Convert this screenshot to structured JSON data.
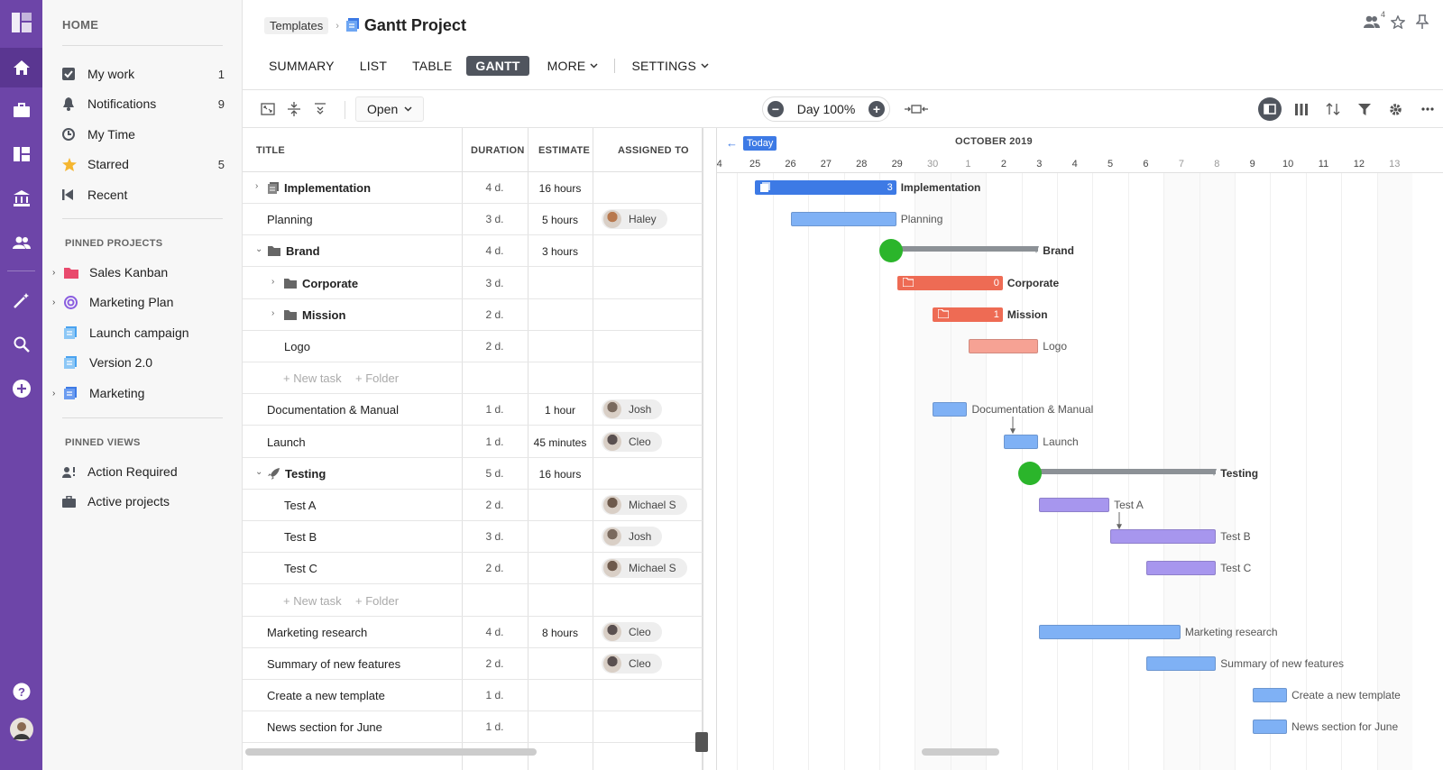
{
  "sidebar": {
    "home": "HOME",
    "items": [
      {
        "label": "My work",
        "count": "1"
      },
      {
        "label": "Notifications",
        "count": "9"
      },
      {
        "label": "My Time",
        "count": ""
      },
      {
        "label": "Starred",
        "count": "5"
      },
      {
        "label": "Recent",
        "count": ""
      }
    ],
    "pinned_projects_title": "PINNED PROJECTS",
    "pinned_projects": [
      "Sales Kanban",
      "Marketing Plan",
      "Launch campaign",
      "Version 2.0",
      "Marketing"
    ],
    "pinned_views_title": "PINNED VIEWS",
    "pinned_views": [
      "Action Required",
      "Active projects"
    ]
  },
  "header": {
    "breadcrumb": "Templates",
    "title": "Gantt Project",
    "tabs": [
      "SUMMARY",
      "LIST",
      "TABLE",
      "GANTT",
      "MORE",
      "SETTINGS"
    ],
    "team_count": "4"
  },
  "toolbar": {
    "open_label": "Open",
    "zoom_label": "Day 100%"
  },
  "columns": {
    "title": "TITLE",
    "duration": "DURATION",
    "estimate": "ESTIMATE",
    "assigned": "ASSIGNED TO"
  },
  "rows": [
    {
      "title": "Implementation",
      "duration": "4 d.",
      "estimate": "16 hours",
      "assignee": ""
    },
    {
      "title": "Planning",
      "duration": "3 d.",
      "estimate": "5 hours",
      "assignee": "Haley"
    },
    {
      "title": "Brand",
      "duration": "4 d.",
      "estimate": "3 hours",
      "assignee": ""
    },
    {
      "title": "Corporate",
      "duration": "3 d.",
      "estimate": "",
      "assignee": ""
    },
    {
      "title": "Mission",
      "duration": "2 d.",
      "estimate": "",
      "assignee": ""
    },
    {
      "title": "Logo",
      "duration": "2 d.",
      "estimate": "",
      "assignee": ""
    },
    {
      "new_task": "+ New task",
      "new_folder": "+ Folder"
    },
    {
      "title": "Documentation & Manual",
      "duration": "1 d.",
      "estimate": "1 hour",
      "assignee": "Josh"
    },
    {
      "title": "Launch",
      "duration": "1 d.",
      "estimate": "45 minutes",
      "assignee": "Cleo"
    },
    {
      "title": "Testing",
      "duration": "5 d.",
      "estimate": "16 hours",
      "assignee": ""
    },
    {
      "title": "Test A",
      "duration": "2 d.",
      "estimate": "",
      "assignee": "Michael S"
    },
    {
      "title": "Test B",
      "duration": "3 d.",
      "estimate": "",
      "assignee": "Josh"
    },
    {
      "title": "Test C",
      "duration": "2 d.",
      "estimate": "",
      "assignee": "Michael S"
    },
    {
      "new_task": "+ New task",
      "new_folder": "+ Folder"
    },
    {
      "title": "Marketing research",
      "duration": "4 d.",
      "estimate": "8 hours",
      "assignee": "Cleo"
    },
    {
      "title": "Summary of new features",
      "duration": "2 d.",
      "estimate": "",
      "assignee": "Cleo"
    },
    {
      "title": "Create a new template",
      "duration": "1 d.",
      "estimate": "",
      "assignee": ""
    },
    {
      "title": "News section for June",
      "duration": "1 d.",
      "estimate": "",
      "assignee": ""
    }
  ],
  "gantt": {
    "today_label": "Today",
    "month": "OCTOBER 2019",
    "days": [
      "4",
      "25",
      "26",
      "27",
      "28",
      "29",
      "30",
      "1",
      "2",
      "3",
      "4",
      "5",
      "6",
      "7",
      "8",
      "9",
      "10",
      "11",
      "12",
      "13"
    ],
    "bars": {
      "implementation_count": "3",
      "corporate_count": "0",
      "mission_count": "1"
    },
    "labels": [
      "Implementation",
      "Planning",
      "Brand",
      "Corporate",
      "Mission",
      "Logo",
      "Documentation & Manual",
      "Launch",
      "Testing",
      "Test A",
      "Test B",
      "Test C",
      "Marketing research",
      "Summary of new features",
      "Create a new template",
      "News section for June"
    ]
  },
  "colors": {
    "rail": "#6d45a8",
    "blue_bar": "#7fb1f5",
    "blue_dark": "#3d7ae5",
    "red_bar": "#ee6b54",
    "red_light": "#f6a294",
    "purple_bar": "#a796ee",
    "milestone": "#2bb52b"
  }
}
